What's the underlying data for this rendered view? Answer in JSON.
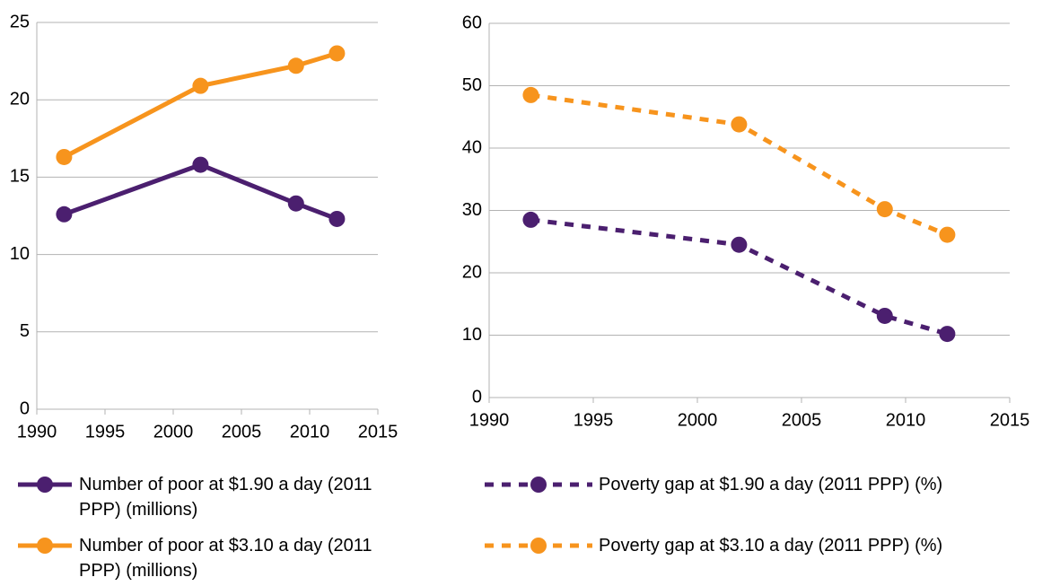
{
  "chart_data": [
    {
      "type": "line",
      "x": [
        1992,
        2002,
        2009,
        2012
      ],
      "xlim": [
        1990,
        2015
      ],
      "xticks": [
        1990,
        1995,
        2000,
        2005,
        2010,
        2015
      ],
      "ylim": [
        0,
        25
      ],
      "yticks": [
        0,
        5,
        10,
        15,
        20,
        25
      ],
      "grid": true,
      "series": [
        {
          "name": "Number of poor at $1.90 a day (2011 PPP) (millions)",
          "color": "#4b1f6f",
          "dashed": false,
          "values": [
            12.6,
            15.8,
            13.3,
            12.3
          ]
        },
        {
          "name": "Number of poor at $3.10 a day (2011 PPP) (millions)",
          "color": "#f7941d",
          "dashed": false,
          "values": [
            16.3,
            20.9,
            22.2,
            23.0
          ]
        }
      ]
    },
    {
      "type": "line",
      "x": [
        1992,
        2002,
        2009,
        2012
      ],
      "xlim": [
        1990,
        2015
      ],
      "xticks": [
        1990,
        1995,
        2000,
        2005,
        2010,
        2015
      ],
      "ylim": [
        0,
        60
      ],
      "yticks": [
        0,
        10,
        20,
        30,
        40,
        50,
        60
      ],
      "grid": true,
      "series": [
        {
          "name": "Poverty gap at $1.90 a day (2011 PPP) (%)",
          "color": "#4b1f6f",
          "dashed": true,
          "values": [
            28.5,
            24.5,
            13.1,
            10.2
          ]
        },
        {
          "name": "Poverty gap at $3.10 a day (2011 PPP) (%)",
          "color": "#f7941d",
          "dashed": true,
          "values": [
            48.5,
            43.8,
            30.2,
            26.1
          ]
        }
      ]
    }
  ]
}
